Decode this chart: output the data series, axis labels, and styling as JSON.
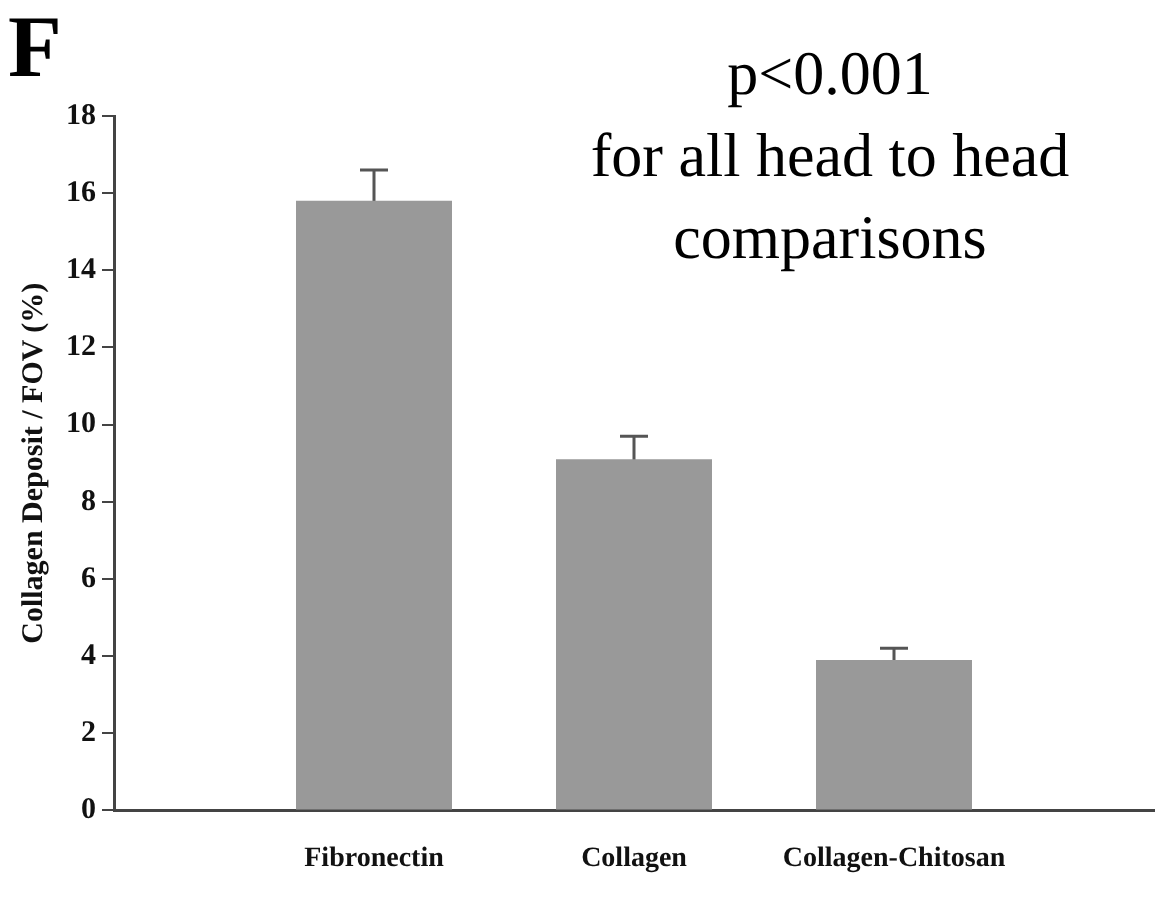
{
  "chart_data": {
    "type": "bar",
    "title": "F",
    "ylabel": "Collagen Deposit / FOV (%)",
    "categories": [
      "Fibronectin",
      "Collagen",
      "Collagen-Chitosan"
    ],
    "values": [
      15.8,
      9.1,
      3.9
    ],
    "errors": [
      0.8,
      0.6,
      0.3
    ],
    "color": "#999999",
    "ylim": [
      0,
      18
    ],
    "yticks": [
      0,
      2,
      4,
      6,
      8,
      10,
      12,
      14,
      16,
      18
    ],
    "grid": false,
    "legend": false,
    "annotations": [
      "p<0.001\nfor all head to head\ncomparisons"
    ]
  }
}
